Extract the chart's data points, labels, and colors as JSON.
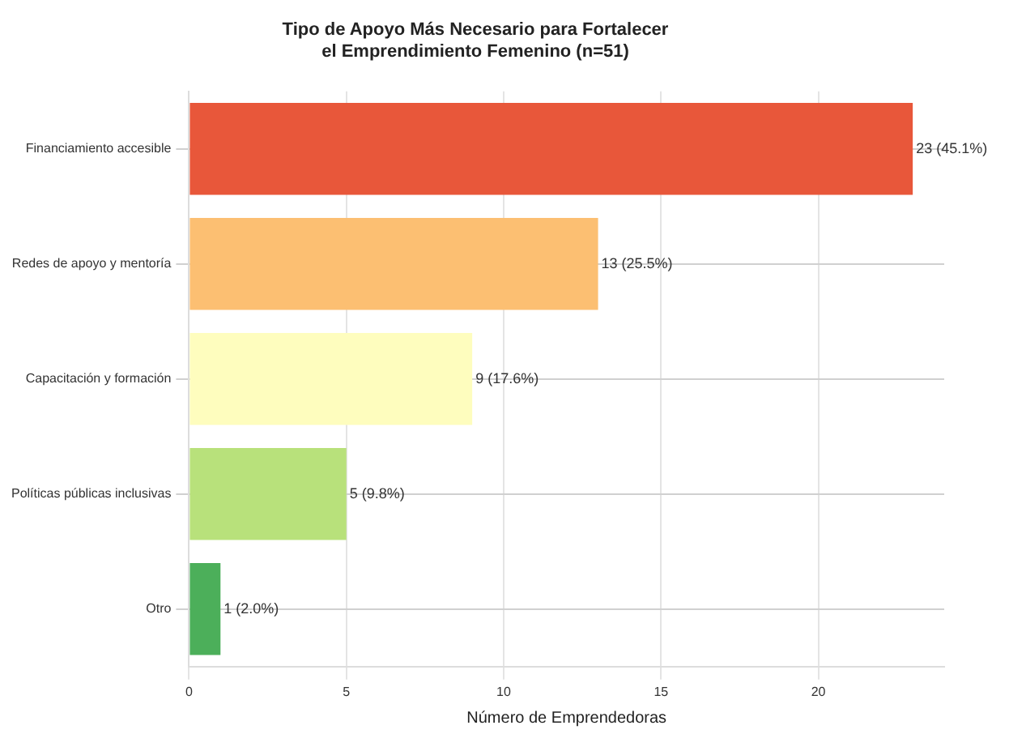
{
  "chart_data": {
    "type": "bar",
    "orientation": "horizontal",
    "title": "Tipo de Apoyo Más Necesario para Fortalecer\nel Emprendimiento Femenino (n=51)",
    "xlabel": "Número de Emprendedoras",
    "categories": [
      "Financiamiento accesible",
      "Redes de apoyo y mentoría",
      "Capacitación y formación",
      "Políticas públicas inclusivas",
      "Otro"
    ],
    "values": [
      23,
      13,
      9,
      5,
      1
    ],
    "colors": [
      "#e8573a",
      "#fcbf72",
      "#fefdbe",
      "#b8e17b",
      "#4caf5a"
    ],
    "value_labels": [
      "23 (45.1%)",
      "13 (25.5%)",
      "9 (17.6%)",
      "5 (9.8%)",
      "1 (2.0%)"
    ],
    "xlim": [
      0,
      24
    ],
    "xticks": [
      0,
      5,
      10,
      15,
      20
    ],
    "grid": true
  }
}
